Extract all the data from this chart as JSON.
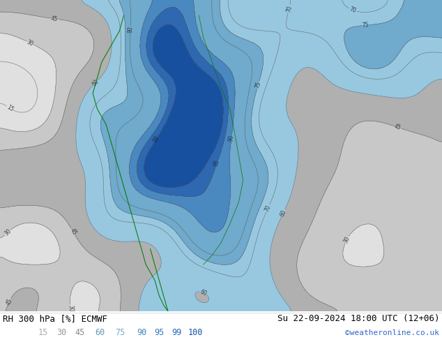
{
  "title_left": "RH 300 hPa [%] ECMWF",
  "title_right": "Su 22-09-2024 18:00 UTC (12+06)",
  "credit": "©weatheronline.co.uk",
  "colorbar_levels": [
    15,
    30,
    45,
    60,
    75,
    90,
    95,
    99,
    100
  ],
  "colorbar_colors": [
    "#e0e0e0",
    "#c8c8c8",
    "#b0b0b0",
    "#98c8e0",
    "#70aacc",
    "#4a88c0",
    "#2e68b0",
    "#1850a0",
    "#0a3888"
  ],
  "contour_levels": [
    15,
    30,
    45,
    60,
    70,
    75,
    80,
    90,
    95,
    99,
    100
  ],
  "bg_color": "#ffffff",
  "title_color": "#000000",
  "credit_color": "#3366cc",
  "figsize": [
    6.34,
    4.9
  ],
  "dpi": 100,
  "label_colors": {
    "15": "#aaaaaa",
    "30": "#999999",
    "45": "#888888",
    "60": "#6699bb",
    "75": "#77aacc",
    "90": "#4488bb",
    "95": "#3377bb",
    "99": "#2266bb",
    "100": "#1155aa"
  },
  "label_x_positions": [
    62,
    88,
    114,
    143,
    172,
    203,
    228,
    253,
    280
  ]
}
